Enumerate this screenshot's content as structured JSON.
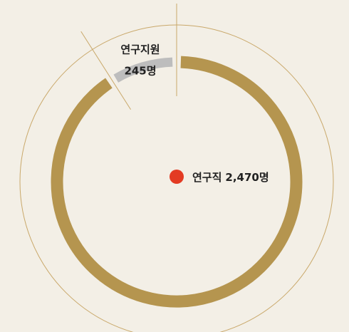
{
  "chart_data": {
    "type": "pie",
    "donut": true,
    "categories": [
      "연구직",
      "연구지원"
    ],
    "values": [
      2470,
      245
    ],
    "value_labels": [
      "2,470명",
      "245명"
    ],
    "colors": [
      "#b5954f",
      "#bdbdbd"
    ]
  }
}
